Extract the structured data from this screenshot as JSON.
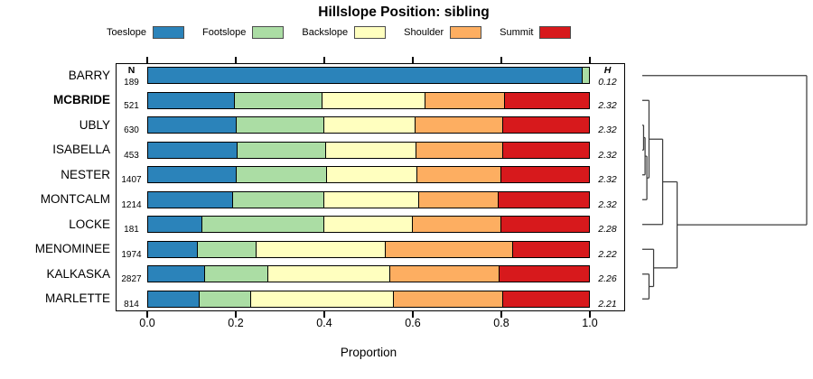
{
  "title": "Hillslope Position: sibling",
  "legend": {
    "items": [
      {
        "label": "Toeslope",
        "color": "#2B83BA"
      },
      {
        "label": "Footslope",
        "color": "#ABDDA4"
      },
      {
        "label": "Backslope",
        "color": "#FFFFBF"
      },
      {
        "label": "Shoulder",
        "color": "#FDAE61"
      },
      {
        "label": "Summit",
        "color": "#D7191C"
      }
    ]
  },
  "table": {
    "n_header": "N",
    "h_header": "H"
  },
  "axis": {
    "label": "Proportion",
    "ticks": [
      "0.0",
      "0.2",
      "0.4",
      "0.6",
      "0.8",
      "1.0"
    ],
    "min": 0,
    "max": 1
  },
  "chart_data": {
    "type": "bar",
    "stacked": true,
    "orientation": "horizontal",
    "title": "Hillslope Position: sibling",
    "xlabel": "Proportion",
    "xlim": [
      0,
      1
    ],
    "grid": false,
    "legend_position": "top",
    "categories": [
      "BARRY",
      "MCBRIDE",
      "UBLY",
      "ISABELLA",
      "NESTER",
      "MONTCALM",
      "LOCKE",
      "MENOMINEE",
      "KALKASKA",
      "MARLETTE"
    ],
    "bold_category": "MCBRIDE",
    "n": [
      189,
      521,
      630,
      453,
      1407,
      1214,
      181,
      1974,
      2827,
      814
    ],
    "shannon_h": [
      0.12,
      2.32,
      2.32,
      2.32,
      2.32,
      2.32,
      2.28,
      2.22,
      2.26,
      2.21
    ],
    "series": [
      {
        "name": "Toeslope",
        "color": "#2B83BA",
        "values": [
          0.985,
          0.196,
          0.2,
          0.203,
          0.201,
          0.193,
          0.122,
          0.112,
          0.129,
          0.115
        ]
      },
      {
        "name": "Footslope",
        "color": "#ABDDA4",
        "values": [
          0.015,
          0.198,
          0.199,
          0.199,
          0.203,
          0.206,
          0.277,
          0.132,
          0.142,
          0.117
        ]
      },
      {
        "name": "Backslope",
        "color": "#FFFFBF",
        "values": [
          0.0,
          0.235,
          0.207,
          0.206,
          0.206,
          0.214,
          0.2,
          0.293,
          0.277,
          0.323
        ]
      },
      {
        "name": "Shoulder",
        "color": "#FDAE61",
        "values": [
          0.0,
          0.179,
          0.197,
          0.195,
          0.19,
          0.18,
          0.201,
          0.289,
          0.247,
          0.248
        ]
      },
      {
        "name": "Summit",
        "color": "#D7191C",
        "values": [
          0.0,
          0.192,
          0.197,
          0.197,
          0.2,
          0.207,
          0.2,
          0.174,
          0.205,
          0.197
        ]
      }
    ],
    "dendrogram": {
      "leaves": [
        "BARRY",
        "MCBRIDE",
        "UBLY",
        "ISABELLA",
        "NESTER",
        "MONTCALM",
        "LOCKE",
        "MENOMINEE",
        "KALKASKA",
        "MARLETTE"
      ],
      "merges": [
        {
          "a": "UBLY",
          "b": "ISABELLA",
          "h": 0.008
        },
        {
          "a": 0,
          "b": "NESTER",
          "h": 0.017
        },
        {
          "a": 1,
          "b": "MONTCALM",
          "h": 0.028
        },
        {
          "a": "MCBRIDE",
          "b": 2,
          "h": 0.041
        },
        {
          "a": 3,
          "b": "LOCKE",
          "h": 0.124
        },
        {
          "a": "KALKASKA",
          "b": "MARLETTE",
          "h": 0.041
        },
        {
          "a": "MENOMINEE",
          "b": 5,
          "h": 0.069
        },
        {
          "a": 4,
          "b": 6,
          "h": 0.212
        },
        {
          "a": "BARRY",
          "b": 7,
          "h": 1.0
        }
      ]
    }
  }
}
